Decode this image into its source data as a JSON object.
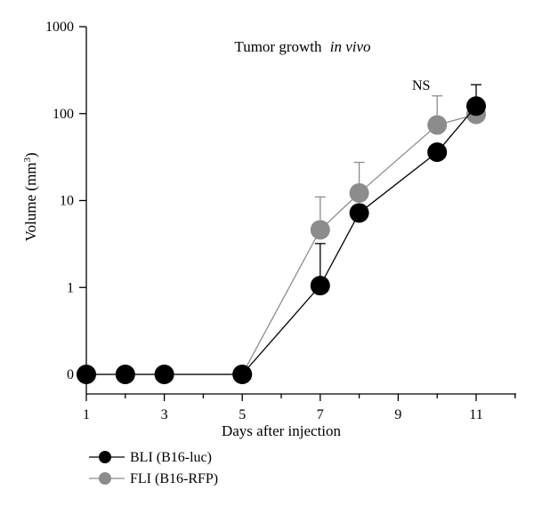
{
  "chart_data": {
    "type": "line",
    "title": "Tumor growth",
    "title_italic": "in vivo",
    "xlabel": "Days after injection",
    "ylabel": "Volume (mm",
    "ylabel_sup": "3",
    "ylabel_close": ")",
    "yscale": "log",
    "xlim": [
      1,
      12
    ],
    "x_ticks": [
      1,
      3,
      5,
      7,
      9,
      11
    ],
    "y_ticks": [
      {
        "value": 0,
        "label": "0"
      },
      {
        "value": 1,
        "label": "1"
      },
      {
        "value": 10,
        "label": "10"
      },
      {
        "value": 100,
        "label": "100"
      },
      {
        "value": 1000,
        "label": "1000"
      }
    ],
    "annotation": {
      "text": "NS",
      "x": 10
    },
    "grid": false,
    "legend_position": "bottom-left",
    "series": [
      {
        "name": "BLI (B16-luc)",
        "color": "#000000",
        "line_color": "#000000",
        "points": [
          {
            "x": 1,
            "y": 0
          },
          {
            "x": 2,
            "y": 0
          },
          {
            "x": 3,
            "y": 0
          },
          {
            "x": 5,
            "y": 0
          },
          {
            "x": 7,
            "y": 1.05,
            "err": 3.2
          },
          {
            "x": 8,
            "y": 7.2
          },
          {
            "x": 10,
            "y": 36
          },
          {
            "x": 11,
            "y": 122,
            "err": 215
          }
        ]
      },
      {
        "name": "FLI (B16-RFP)",
        "color": "#8c8c8c",
        "line_color": "#8c8c8c",
        "points": [
          {
            "x": 1,
            "y": 0
          },
          {
            "x": 2,
            "y": 0
          },
          {
            "x": 3,
            "y": 0
          },
          {
            "x": 5,
            "y": 0
          },
          {
            "x": 7,
            "y": 4.6,
            "err": 11
          },
          {
            "x": 8,
            "y": 12.2,
            "err": 27.5
          },
          {
            "x": 10,
            "y": 74,
            "err": 160
          },
          {
            "x": 11,
            "y": 98
          }
        ]
      }
    ]
  }
}
